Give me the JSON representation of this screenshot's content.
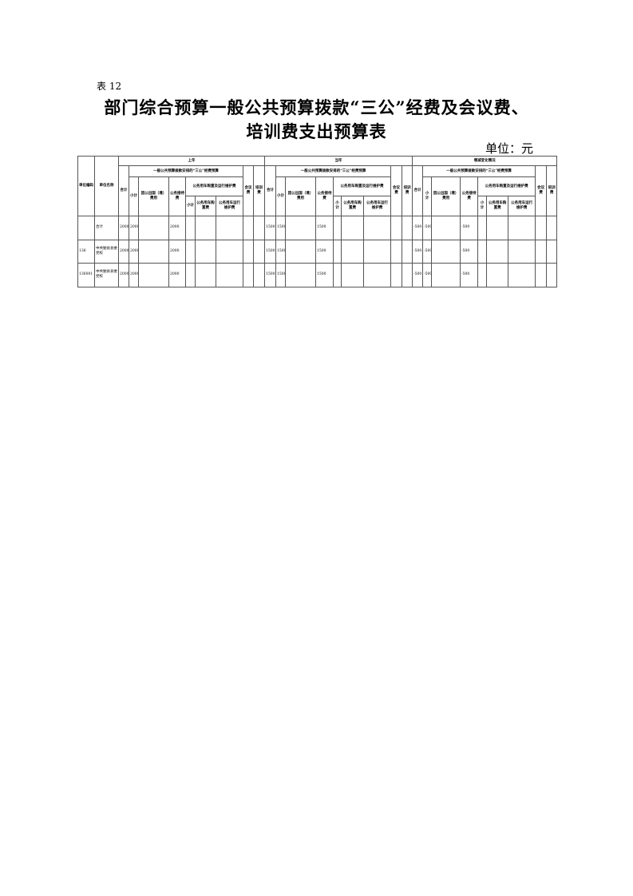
{
  "label": "表 12",
  "title_line1": "部门综合预算一般公共预算拨款“三公”经费及会议费、",
  "title_line2": "培训费支出预算表",
  "unit": "单位：元",
  "headers": {
    "code": "单位编码",
    "name": "单位名称",
    "groups": [
      "上年",
      "当年",
      "增减变化情况"
    ],
    "sangong": "一般公共预算拨款安排的“三公”经费预算",
    "total": "合计",
    "subtotal": "小计",
    "abroad": "因公出国（境）费用",
    "reception": "公务接待费",
    "vehicle": "公务用车购置及运行维护费",
    "vsub": "小计",
    "vbuy": "公务用车购置费",
    "vrun": "公务用车运行维护费",
    "meeting": "会议费",
    "training": "培训费"
  },
  "rows": [
    {
      "code": "",
      "name": "合计",
      "prev": [
        "2000",
        "2000",
        "",
        "2000",
        "",
        "",
        "",
        "",
        ""
      ],
      "cur": [
        "1500",
        "1500",
        "",
        "1500",
        "",
        "",
        "",
        "",
        ""
      ],
      "diff": [
        "-500",
        "-500",
        "",
        "-500",
        "",
        "",
        "",
        "",
        ""
      ]
    },
    {
      "code": "136",
      "name": "中共勉县县委党校",
      "prev": [
        "2000",
        "2000",
        "",
        "2000",
        "",
        "",
        "",
        "",
        ""
      ],
      "cur": [
        "1500",
        "1500",
        "",
        "1500",
        "",
        "",
        "",
        "",
        ""
      ],
      "diff": [
        "-500",
        "-500",
        "",
        "-500",
        "",
        "",
        "",
        "",
        ""
      ]
    },
    {
      "code": "136001",
      "name": "中共勉县县委党校",
      "prev": [
        "2000",
        "2000",
        "",
        "2000",
        "",
        "",
        "",
        "",
        ""
      ],
      "cur": [
        "1500",
        "1500",
        "",
        "1500",
        "",
        "",
        "",
        "",
        ""
      ],
      "diff": [
        "-500",
        "-500",
        "",
        "-500",
        "",
        "",
        "",
        "",
        ""
      ]
    }
  ]
}
